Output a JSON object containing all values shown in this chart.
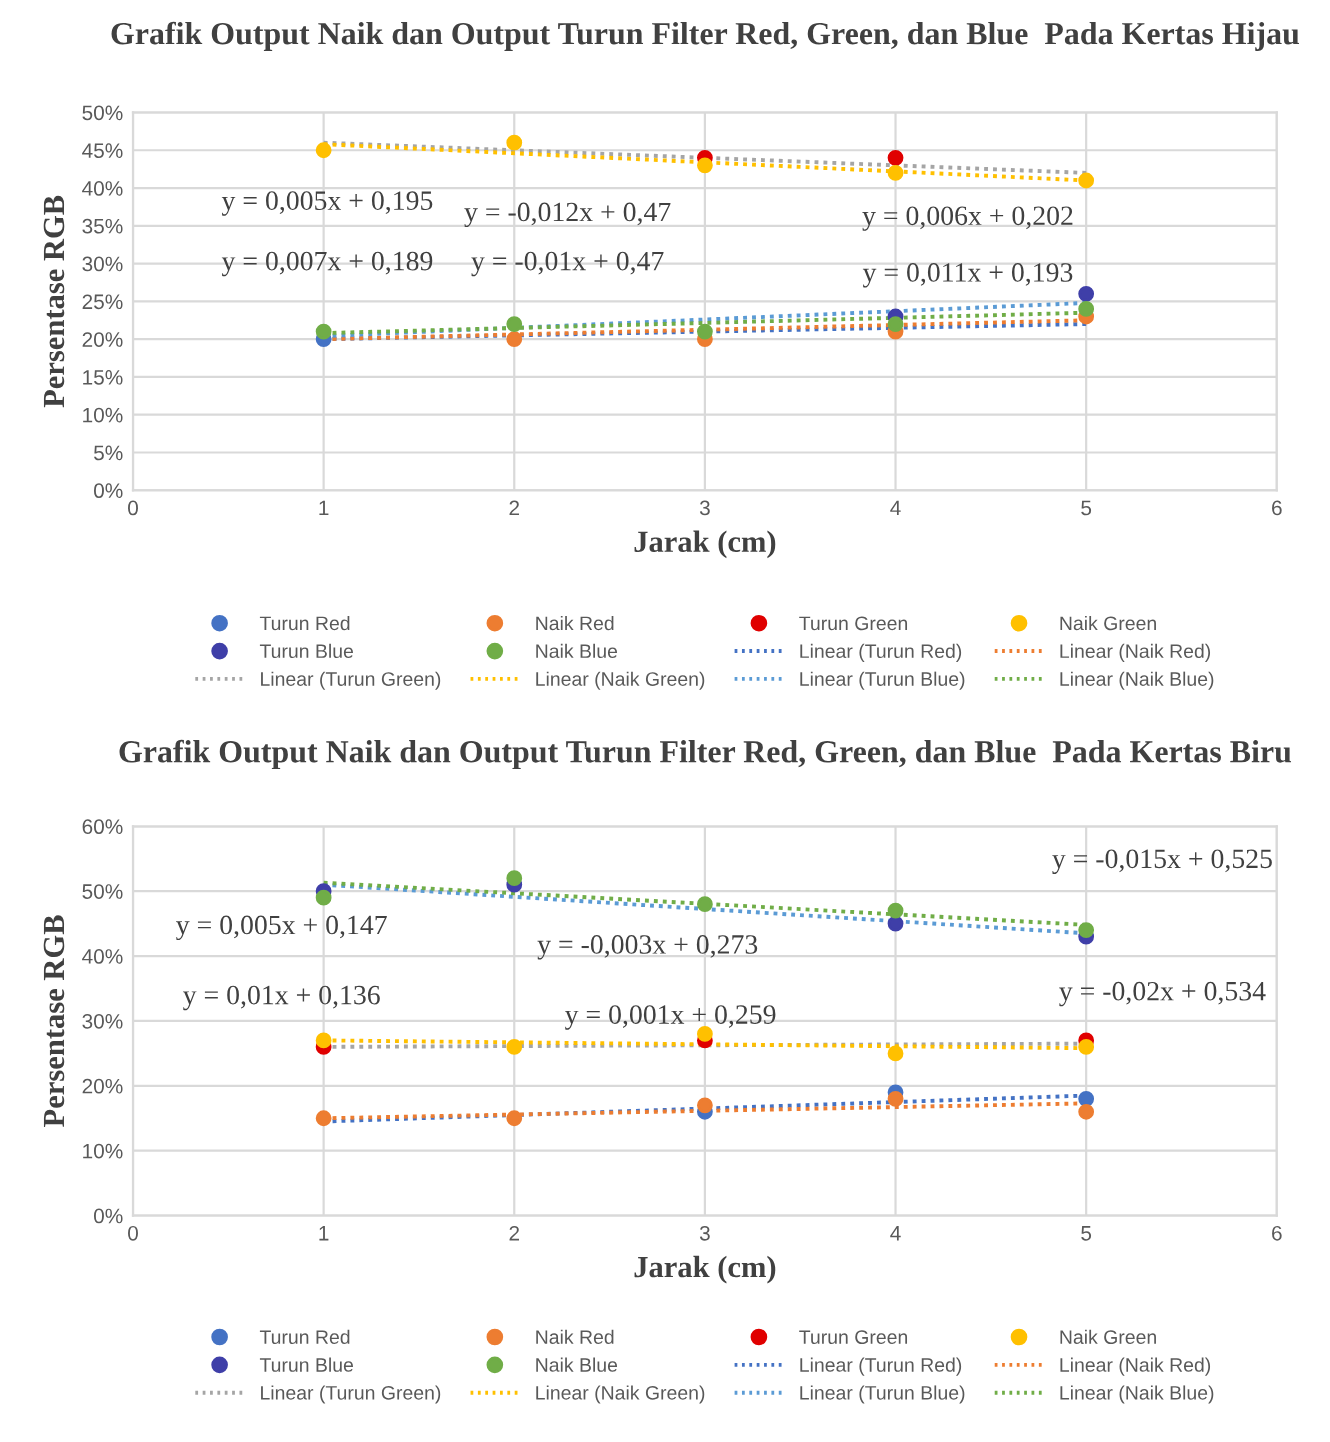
{
  "chart_data": [
    {
      "type": "scatter",
      "title": "Grafik Output Naik dan Output Turun Filter Red, Green, dan Blue  Pada Kertas Hijau",
      "xlabel": "Jarak (cm)",
      "ylabel": "Persentase RGB",
      "xlim": [
        0,
        6
      ],
      "xticks": [
        0,
        1,
        2,
        3,
        4,
        5,
        6
      ],
      "ylim": [
        0,
        50
      ],
      "yticks": [
        {
          "value": 0,
          "label": "0%"
        },
        {
          "value": 5,
          "label": "5%"
        },
        {
          "value": 10,
          "label": "10%"
        },
        {
          "value": 15,
          "label": "15%"
        },
        {
          "value": 20,
          "label": "20%"
        },
        {
          "value": 25,
          "label": "25%"
        },
        {
          "value": 30,
          "label": "30%"
        },
        {
          "value": 35,
          "label": "35%"
        },
        {
          "value": 40,
          "label": "40%"
        },
        {
          "value": 45,
          "label": "45%"
        },
        {
          "value": 50,
          "label": "50%"
        }
      ],
      "grid": true,
      "legend": "bottom",
      "series": [
        {
          "name": "Turun Red",
          "color": "#4472c4",
          "marker": "circle",
          "x": [
            1
          ],
          "values": [
            20
          ]
        },
        {
          "name": "Naik Red",
          "color": "#ed7d31",
          "marker": "circle",
          "x": [
            2,
            3,
            4,
            5
          ],
          "values": [
            20,
            20,
            21,
            23
          ]
        },
        {
          "name": "Turun Green",
          "color": "#e00000",
          "marker": "circle",
          "x": [
            3,
            4
          ],
          "values": [
            44,
            44
          ]
        },
        {
          "name": "Naik Green",
          "color": "#ffc000",
          "marker": "circle",
          "x": [
            1,
            2,
            3,
            4,
            5
          ],
          "values": [
            45,
            46,
            43,
            42,
            41
          ]
        },
        {
          "name": "Turun Blue",
          "color": "#3f3fa8",
          "marker": "circle",
          "x": [
            4,
            5
          ],
          "values": [
            23,
            26
          ]
        },
        {
          "name": "Naik Blue",
          "color": "#70ad47",
          "marker": "circle",
          "x": [
            1,
            2,
            3,
            4,
            5
          ],
          "values": [
            21,
            22,
            21,
            22,
            24
          ]
        },
        {
          "name": "Linear (Turun Red)",
          "type": "line",
          "line_style": "dotted",
          "color": "#4472c4",
          "x": [
            1,
            5
          ],
          "values": [
            20,
            22
          ]
        },
        {
          "name": "Linear (Naik Red)",
          "type": "line",
          "line_style": "dotted",
          "color": "#ed7d31",
          "x": [
            1,
            5
          ],
          "values": [
            20,
            22.5
          ]
        },
        {
          "name": "Linear (Turun Green)",
          "type": "line",
          "line_style": "dotted",
          "color": "#a5a5a5",
          "x": [
            1,
            5
          ],
          "values": [
            46,
            42
          ]
        },
        {
          "name": "Linear (Naik Green)",
          "type": "line",
          "line_style": "dotted",
          "color": "#ffc000",
          "x": [
            1,
            5
          ],
          "values": [
            45.8,
            41
          ]
        },
        {
          "name": "Linear (Turun Blue)",
          "type": "line",
          "line_style": "dotted",
          "color": "#5b9bd5",
          "x": [
            1,
            5
          ],
          "values": [
            20.4,
            24.8
          ]
        },
        {
          "name": "Linear (Naik Blue)",
          "type": "line",
          "line_style": "dotted",
          "color": "#70ad47",
          "x": [
            1,
            5
          ],
          "values": [
            20.8,
            23.5
          ]
        }
      ],
      "annotations": [
        "y = 0,005x + 0,195",
        "y = -0,012x + 0,47",
        "y = 0,006x + 0,202",
        "y = 0,007x + 0,189",
        "y = -0,01x + 0,47",
        "y = 0,011x + 0,193"
      ]
    },
    {
      "type": "scatter",
      "title": "Grafik Output Naik dan Output Turun Filter Red, Green, dan Blue  Pada Kertas Biru",
      "xlabel": "Jarak (cm)",
      "ylabel": "Persentase RGB",
      "xlim": [
        0,
        6
      ],
      "xticks": [
        0,
        1,
        2,
        3,
        4,
        5,
        6
      ],
      "ylim": [
        0,
        60
      ],
      "yticks": [
        {
          "value": 0,
          "label": "0%"
        },
        {
          "value": 10,
          "label": "10%"
        },
        {
          "value": 20,
          "label": "20%"
        },
        {
          "value": 30,
          "label": "30%"
        },
        {
          "value": 40,
          "label": "40%"
        },
        {
          "value": 50,
          "label": "50%"
        },
        {
          "value": 60,
          "label": "60%"
        }
      ],
      "grid": true,
      "legend": "bottom",
      "series": [
        {
          "name": "Turun Red",
          "color": "#4472c4",
          "marker": "circle",
          "x": [
            3,
            4,
            5
          ],
          "values": [
            16,
            19,
            18
          ]
        },
        {
          "name": "Naik Red",
          "color": "#ed7d31",
          "marker": "circle",
          "x": [
            1,
            2,
            3,
            4,
            5
          ],
          "values": [
            15,
            15,
            17,
            18,
            16
          ]
        },
        {
          "name": "Turun Green",
          "color": "#e00000",
          "marker": "circle",
          "x": [
            1,
            3,
            5
          ],
          "values": [
            26,
            27,
            27
          ]
        },
        {
          "name": "Naik Green",
          "color": "#ffc000",
          "marker": "circle",
          "x": [
            1,
            2,
            3,
            4,
            5
          ],
          "values": [
            27,
            26,
            28,
            25,
            26
          ]
        },
        {
          "name": "Turun Blue",
          "color": "#3f3fa8",
          "marker": "circle",
          "x": [
            1,
            2,
            4,
            5
          ],
          "values": [
            50,
            51,
            45,
            43
          ]
        },
        {
          "name": "Naik Blue",
          "color": "#70ad47",
          "marker": "circle",
          "x": [
            1,
            2,
            3,
            4,
            5
          ],
          "values": [
            49,
            52,
            48,
            47,
            44
          ]
        },
        {
          "name": "Linear (Turun Red)",
          "type": "line",
          "line_style": "dotted",
          "color": "#4472c4",
          "x": [
            1,
            5
          ],
          "values": [
            14.5,
            18.5
          ]
        },
        {
          "name": "Linear (Naik Red)",
          "type": "line",
          "line_style": "dotted",
          "color": "#ed7d31",
          "x": [
            1,
            5
          ],
          "values": [
            15,
            17.3
          ]
        },
        {
          "name": "Linear (Turun Green)",
          "type": "line",
          "line_style": "dotted",
          "color": "#a5a5a5",
          "x": [
            1,
            5
          ],
          "values": [
            26,
            26.5
          ]
        },
        {
          "name": "Linear (Naik Green)",
          "type": "line",
          "line_style": "dotted",
          "color": "#ffc000",
          "x": [
            1,
            5
          ],
          "values": [
            27,
            25.8
          ]
        },
        {
          "name": "Linear (Turun Blue)",
          "type": "line",
          "line_style": "dotted",
          "color": "#5b9bd5",
          "x": [
            1,
            5
          ],
          "values": [
            51,
            43.5
          ]
        },
        {
          "name": "Linear (Naik Blue)",
          "type": "line",
          "line_style": "dotted",
          "color": "#70ad47",
          "x": [
            1,
            5
          ],
          "values": [
            51.3,
            44.8
          ]
        }
      ],
      "annotations": [
        "y = -0,015x + 0,525",
        "y = 0,005x + 0,147",
        "y = -0,003x + 0,273",
        "y = 0,01x + 0,136",
        "y = 0,001x + 0,259",
        "y = -0,02x + 0,534"
      ]
    }
  ]
}
